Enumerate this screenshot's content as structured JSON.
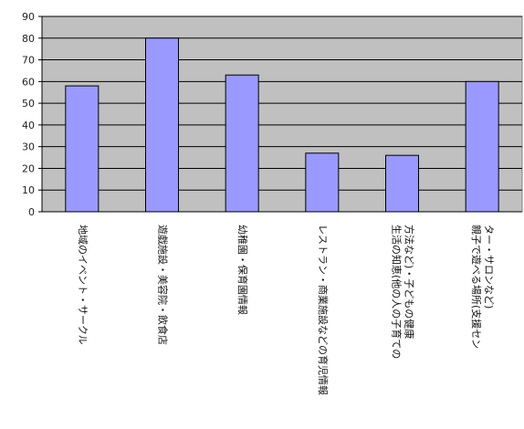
{
  "chart_data": {
    "type": "bar",
    "title": "",
    "xlabel": "",
    "ylabel": "",
    "ylim": [
      0,
      90
    ],
    "yticks": [
      0,
      10,
      20,
      30,
      40,
      50,
      60,
      70,
      80,
      90
    ],
    "grid": true,
    "legend": "none",
    "categories": [
      "地域のイベント・サークル",
      "遊戯施設・美容院・飲食店",
      "幼稚園・保育園情報",
      "レストラン・商業施設などの育児情報",
      "生活の知恵(他の人の子育ての方法など)・子どもの健康",
      "親子で遊べる場所(支援センター・サロンなど)"
    ],
    "category_lines": [
      [
        "地域のイベント・サークル"
      ],
      [
        "遊戯施設・美容院・飲食店"
      ],
      [
        "幼稚園・保育園情報"
      ],
      [
        "レストラン・商業施設などの育児情報"
      ],
      [
        "生活の知恵(他の人の子育ての",
        "方法など)・子どもの健康"
      ],
      [
        "親子で遊べる場所(支援セン",
        "ター・サロンなど)"
      ]
    ],
    "values": [
      58,
      80,
      63,
      27,
      26,
      60
    ],
    "colors": {
      "plot_bg": "#c0c0c0",
      "bar_fill": "#9999ff",
      "bar_stroke": "#000000",
      "grid": "#000000"
    }
  }
}
